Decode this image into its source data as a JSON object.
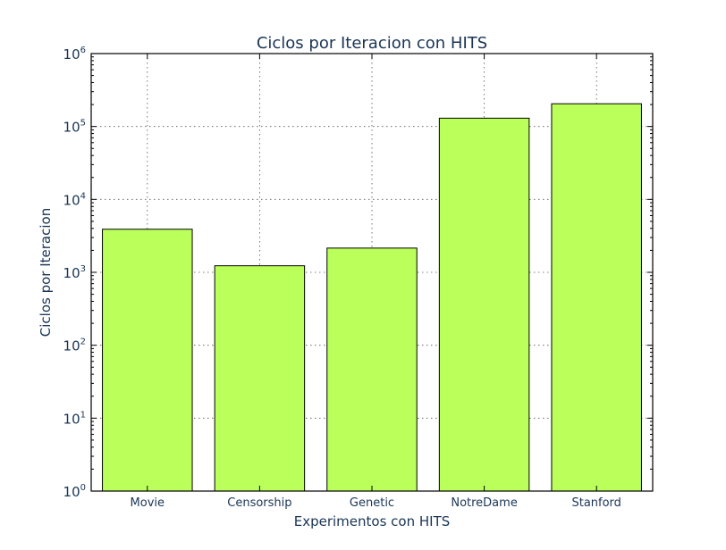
{
  "chart_data": {
    "type": "bar",
    "title": "Ciclos por Iteracion con HITS",
    "xlabel": "Experimentos con HITS",
    "ylabel": "Ciclos por Iteracion",
    "y_scale": "log",
    "ylim": [
      1,
      1000000
    ],
    "y_ticks": [
      {
        "base": "10",
        "exp": "0",
        "value": 1
      },
      {
        "base": "10",
        "exp": "1",
        "value": 10
      },
      {
        "base": "10",
        "exp": "2",
        "value": 100
      },
      {
        "base": "10",
        "exp": "3",
        "value": 1000
      },
      {
        "base": "10",
        "exp": "4",
        "value": 10000
      },
      {
        "base": "10",
        "exp": "5",
        "value": 100000
      },
      {
        "base": "10",
        "exp": "6",
        "value": 1000000
      }
    ],
    "categories": [
      "Movie",
      "Censorship",
      "Genetic",
      "NotreDame",
      "Stanford"
    ],
    "values": [
      3900,
      1230,
      2150,
      130000,
      205000
    ],
    "bar_color": "#bbff5a",
    "grid": true
  }
}
